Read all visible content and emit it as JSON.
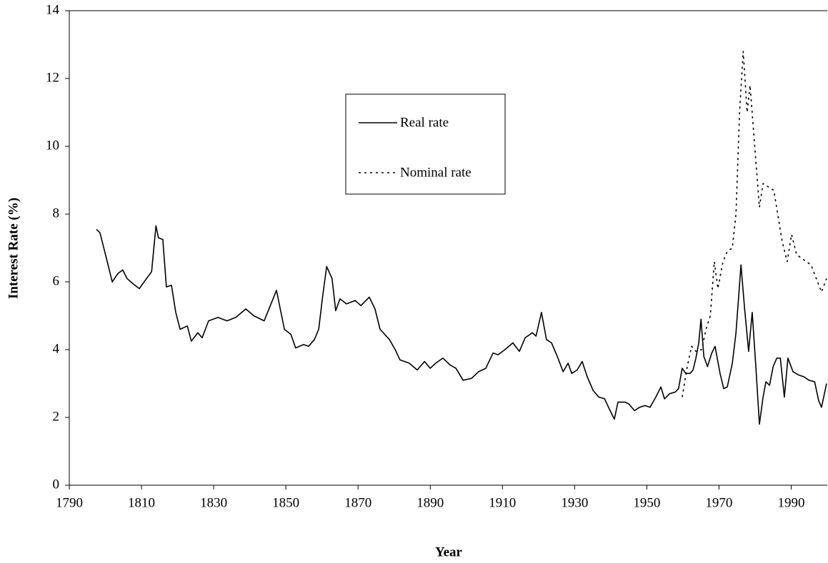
{
  "chart_data": {
    "type": "line",
    "x_label": "Year",
    "y_label": "Interest Rate (%)",
    "xlim": [
      1790,
      2000
    ],
    "xticks": [
      1790,
      1810,
      1830,
      1850,
      1870,
      1890,
      1910,
      1930,
      1950,
      1970,
      1990
    ],
    "ylim": [
      0,
      14
    ],
    "yticks": [
      0,
      2,
      4,
      6,
      8,
      10,
      12,
      14
    ],
    "legend_position": "upper center",
    "series": [
      {
        "name": "Real rate",
        "color": "#000000",
        "linestyle": "solid",
        "x": [
          1797.5,
          1798.5,
          1800.5,
          1801.9,
          1803.5,
          1804.8,
          1806,
          1807.6,
          1809.4,
          1811.4,
          1812.8,
          1814,
          1814.7,
          1815.9,
          1816.9,
          1818.3,
          1819.5,
          1820.7,
          1822.7,
          1823.8,
          1825.6,
          1826.8,
          1828.6,
          1831.2,
          1833.7,
          1836.1,
          1838.9,
          1841.1,
          1844,
          1847.4,
          1849.6,
          1851.4,
          1852.7,
          1854.9,
          1856.3,
          1857.9,
          1859.1,
          1860.1,
          1861.3,
          1862.8,
          1863.8,
          1865,
          1866.8,
          1869.2,
          1870.8,
          1873.1,
          1874.7,
          1876.1,
          1878.7,
          1880.3,
          1881.6,
          1884.2,
          1886.4,
          1888.4,
          1890,
          1891.5,
          1893.5,
          1895.5,
          1897.1,
          1899.1,
          1901.4,
          1903.4,
          1905.4,
          1907.4,
          1908.8,
          1910.7,
          1912.9,
          1914.7,
          1916.3,
          1918.3,
          1919.3,
          1920.8,
          1922.2,
          1923.6,
          1925.2,
          1926.8,
          1928.2,
          1929.2,
          1930.7,
          1932.1,
          1933.5,
          1935.1,
          1936.7,
          1938.3,
          1939.4,
          1941,
          1942,
          1944,
          1945,
          1946.6,
          1948,
          1949.5,
          1950.9,
          1952.5,
          1953.9,
          1954.9,
          1956.3,
          1957.9,
          1958.8,
          1959.8,
          1960.8,
          1962,
          1962.8,
          1963.6,
          1964.4,
          1965,
          1965.8,
          1966.8,
          1968,
          1968.9,
          1970.3,
          1971.3,
          1972.3,
          1973.7,
          1974.7,
          1976.1,
          1977.1,
          1978.2,
          1979.2,
          1980.2,
          1981.2,
          1982.2,
          1983,
          1984,
          1985,
          1986,
          1987,
          1988.1,
          1989.1,
          1990.5,
          1992.1,
          1993.5,
          1994.9,
          1996.5,
          1997.6,
          1998.4,
          1999.8
        ],
        "values": [
          7.55,
          7.45,
          6.6,
          6.0,
          6.25,
          6.35,
          6.1,
          5.95,
          5.8,
          6.1,
          6.3,
          7.65,
          7.3,
          7.25,
          5.85,
          5.9,
          5.1,
          4.6,
          4.7,
          4.25,
          4.5,
          4.35,
          4.85,
          4.95,
          4.85,
          4.95,
          5.2,
          5.0,
          4.85,
          5.75,
          4.6,
          4.45,
          4.05,
          4.15,
          4.1,
          4.3,
          4.6,
          5.5,
          6.45,
          6.1,
          5.15,
          5.5,
          5.35,
          5.45,
          5.3,
          5.55,
          5.2,
          4.6,
          4.3,
          4.0,
          3.7,
          3.6,
          3.4,
          3.65,
          3.45,
          3.6,
          3.75,
          3.55,
          3.45,
          3.1,
          3.15,
          3.35,
          3.45,
          3.9,
          3.85,
          4.0,
          4.2,
          3.95,
          4.35,
          4.5,
          4.4,
          5.1,
          4.3,
          4.2,
          3.8,
          3.35,
          3.6,
          3.3,
          3.4,
          3.65,
          3.2,
          2.8,
          2.6,
          2.55,
          2.3,
          1.95,
          2.45,
          2.45,
          2.4,
          2.2,
          2.3,
          2.35,
          2.3,
          2.6,
          2.9,
          2.55,
          2.7,
          2.75,
          2.85,
          3.45,
          3.3,
          3.3,
          3.4,
          3.75,
          4.2,
          4.9,
          3.8,
          3.5,
          3.9,
          4.1,
          3.3,
          2.85,
          2.9,
          3.6,
          4.5,
          6.5,
          5.2,
          3.95,
          5.1,
          3.5,
          1.8,
          2.6,
          3.05,
          2.95,
          3.5,
          3.75,
          3.75,
          2.6,
          3.75,
          3.35,
          3.25,
          3.2,
          3.1,
          3.05,
          2.5,
          2.3,
          3.0
        ]
      },
      {
        "name": "Nominal rate",
        "color": "#000000",
        "linestyle": "dotted",
        "x": [
          1959.8,
          1961.2,
          1962.4,
          1963.6,
          1965.2,
          1966.4,
          1967.6,
          1968.7,
          1969.7,
          1971.1,
          1972.3,
          1973.7,
          1974.7,
          1975.7,
          1976.7,
          1977.8,
          1978.6,
          1981.2,
          1982.2,
          1985.2,
          1987.5,
          1988.9,
          1990.1,
          1991.5,
          1995.5,
          1998.4,
          1999.8
        ],
        "values": [
          2.6,
          3.5,
          4.1,
          3.95,
          4.0,
          4.6,
          5.0,
          6.6,
          5.8,
          6.6,
          6.9,
          7.0,
          8.0,
          11.0,
          12.8,
          11.0,
          11.8,
          8.2,
          8.9,
          8.7,
          7.2,
          6.6,
          7.4,
          6.8,
          6.5,
          5.7,
          6.1
        ]
      }
    ]
  }
}
